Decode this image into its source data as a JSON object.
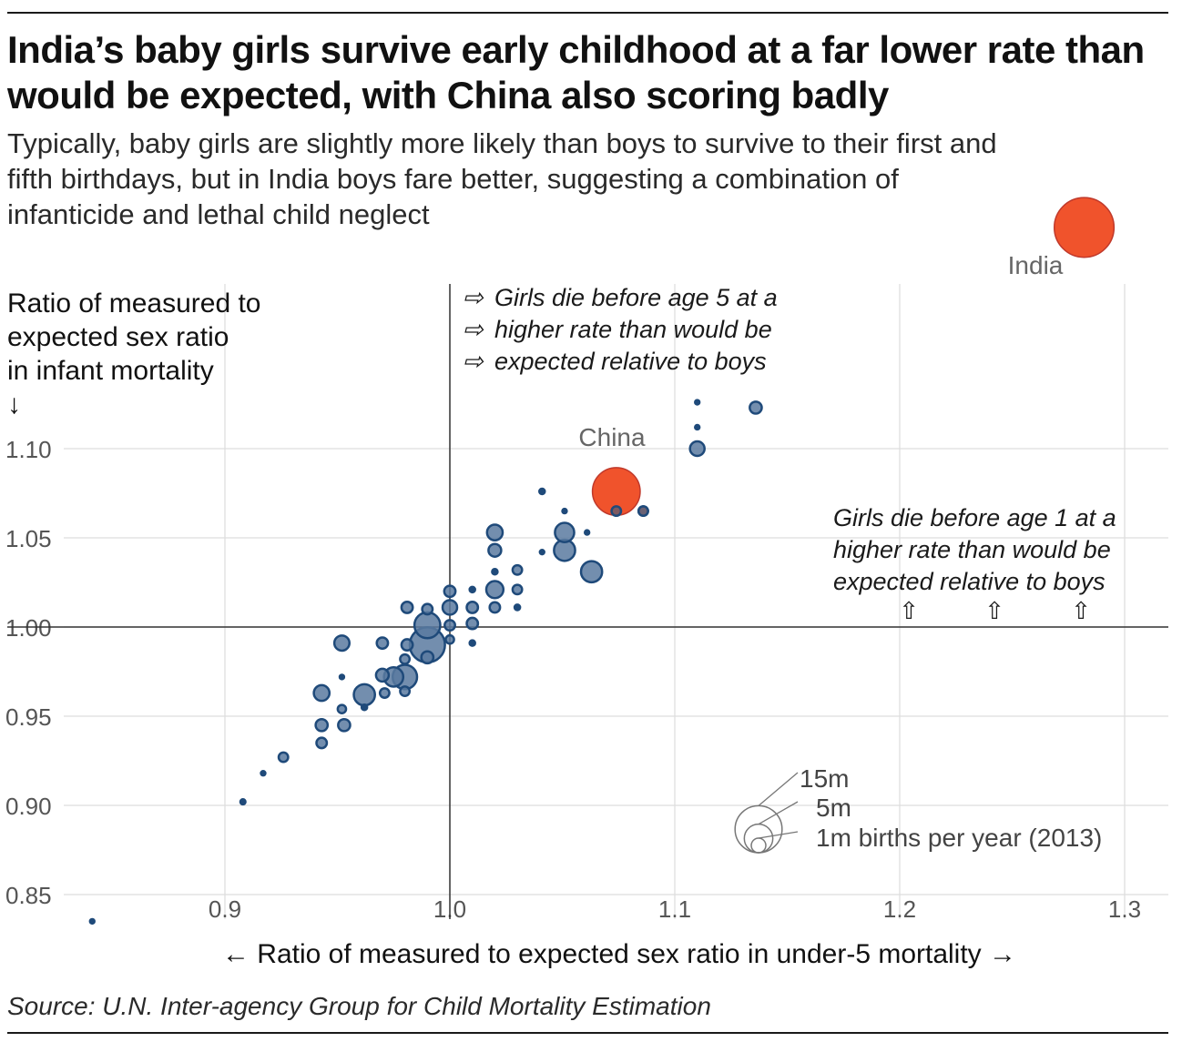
{
  "title": "India’s baby girls survive early childhood at a far lower rate than would be expected, with China also scoring badly",
  "subtitle": "Typically, baby girls are slightly more likely than boys to survive to their first and fifth birthdays, but in India boys fare better, suggesting a combination of infanticide and lethal child neglect",
  "source": "Source: U.N. Inter-agency Group for Child Mortality Estimation",
  "colors": {
    "bubble_fill": "#5a7aa0",
    "bubble_stroke": "#1f4a7a",
    "dark_bubble": "#1f4a7a",
    "highlight": "#f0532c",
    "highlight_stroke": "#c0392b",
    "grid": "#dddddd",
    "axis": "#333333",
    "label_gray": "#666666"
  },
  "chart_data": {
    "type": "scatter",
    "title": "India’s baby girls survive early childhood at a far lower rate than would be expected, with China also scoring badly",
    "xlabel": "← Ratio of measured to expected sex ratio in under-5 mortality →",
    "ylabel": "Ratio of measured to expected sex ratio in infant mortality",
    "ylabel_lines": [
      "Ratio of measured to",
      "expected sex ratio",
      "in infant mortality",
      "↓"
    ],
    "xlim": [
      0.8,
      1.32
    ],
    "ylim": [
      0.84,
      1.2
    ],
    "x_ticks": [
      0.9,
      1.0,
      1.1,
      1.2,
      1.3
    ],
    "x_tick_labels": [
      "0.9",
      "1.0",
      "1.1",
      "1.2",
      "1.3"
    ],
    "y_ticks": [
      1.1,
      1.05,
      1.0,
      0.95,
      0.9,
      0.85
    ],
    "y_tick_labels": [
      "1.10",
      "1.05",
      "1.00",
      "0.95",
      "0.90",
      "0.85"
    ],
    "grid": true,
    "reference_lines": {
      "x": 1.0,
      "y": 1.0
    },
    "size_variable": "births per year (2013)",
    "points": [
      {
        "x": 0.841,
        "y": 0.835,
        "births_m": 0.05
      },
      {
        "x": 0.908,
        "y": 0.902,
        "births_m": 0.08
      },
      {
        "x": 0.917,
        "y": 0.918,
        "births_m": 0.05
      },
      {
        "x": 0.926,
        "y": 0.927,
        "births_m": 0.3
      },
      {
        "x": 0.943,
        "y": 0.935,
        "births_m": 0.4
      },
      {
        "x": 0.943,
        "y": 0.945,
        "births_m": 0.6
      },
      {
        "x": 0.953,
        "y": 0.945,
        "births_m": 0.6
      },
      {
        "x": 0.943,
        "y": 0.963,
        "births_m": 1.2
      },
      {
        "x": 0.952,
        "y": 0.954,
        "births_m": 0.2
      },
      {
        "x": 0.952,
        "y": 0.972,
        "births_m": 0.05
      },
      {
        "x": 0.952,
        "y": 0.991,
        "births_m": 1.1
      },
      {
        "x": 0.962,
        "y": 0.962,
        "births_m": 2.5
      },
      {
        "x": 0.962,
        "y": 0.955,
        "births_m": 0.1
      },
      {
        "x": 0.97,
        "y": 0.991,
        "births_m": 0.5
      },
      {
        "x": 0.97,
        "y": 0.973,
        "births_m": 0.7
      },
      {
        "x": 0.975,
        "y": 0.972,
        "births_m": 2.0
      },
      {
        "x": 0.971,
        "y": 0.963,
        "births_m": 0.3
      },
      {
        "x": 0.98,
        "y": 0.972,
        "births_m": 3.5
      },
      {
        "x": 0.98,
        "y": 0.982,
        "births_m": 0.3
      },
      {
        "x": 0.98,
        "y": 0.964,
        "births_m": 0.3
      },
      {
        "x": 0.981,
        "y": 1.011,
        "births_m": 0.5
      },
      {
        "x": 0.981,
        "y": 0.99,
        "births_m": 0.5
      },
      {
        "x": 0.99,
        "y": 0.99,
        "births_m": 8.0
      },
      {
        "x": 0.99,
        "y": 1.001,
        "births_m": 4.0
      },
      {
        "x": 0.99,
        "y": 0.983,
        "births_m": 0.6
      },
      {
        "x": 0.99,
        "y": 1.01,
        "births_m": 0.4
      },
      {
        "x": 1.0,
        "y": 1.011,
        "births_m": 1.0
      },
      {
        "x": 1.0,
        "y": 1.02,
        "births_m": 0.5
      },
      {
        "x": 1.0,
        "y": 1.001,
        "births_m": 0.4
      },
      {
        "x": 1.0,
        "y": 0.993,
        "births_m": 0.2
      },
      {
        "x": 1.01,
        "y": 1.011,
        "births_m": 0.5
      },
      {
        "x": 1.01,
        "y": 1.002,
        "births_m": 0.5
      },
      {
        "x": 1.01,
        "y": 1.021,
        "births_m": 0.1
      },
      {
        "x": 1.01,
        "y": 0.991,
        "births_m": 0.1
      },
      {
        "x": 1.02,
        "y": 1.053,
        "births_m": 1.2
      },
      {
        "x": 1.02,
        "y": 1.043,
        "births_m": 0.7
      },
      {
        "x": 1.02,
        "y": 1.021,
        "births_m": 1.5
      },
      {
        "x": 1.02,
        "y": 1.011,
        "births_m": 0.4
      },
      {
        "x": 1.02,
        "y": 1.031,
        "births_m": 0.1
      },
      {
        "x": 1.03,
        "y": 1.032,
        "births_m": 0.3
      },
      {
        "x": 1.03,
        "y": 1.021,
        "births_m": 0.3
      },
      {
        "x": 1.03,
        "y": 1.011,
        "births_m": 0.1
      },
      {
        "x": 1.041,
        "y": 1.076,
        "births_m": 0.1
      },
      {
        "x": 1.041,
        "y": 1.042,
        "births_m": 0.05
      },
      {
        "x": 1.051,
        "y": 1.053,
        "births_m": 2.0
      },
      {
        "x": 1.051,
        "y": 1.043,
        "births_m": 2.5
      },
      {
        "x": 1.051,
        "y": 1.065,
        "births_m": 0.05
      },
      {
        "x": 1.061,
        "y": 1.053,
        "births_m": 0.05
      },
      {
        "x": 1.063,
        "y": 1.031,
        "births_m": 2.5
      },
      {
        "x": 1.074,
        "y": 1.065,
        "births_m": 0.3
      },
      {
        "x": 1.086,
        "y": 1.065,
        "births_m": 0.3
      },
      {
        "x": 1.11,
        "y": 1.1,
        "births_m": 1.0
      },
      {
        "x": 1.11,
        "y": 1.112,
        "births_m": 0.05
      },
      {
        "x": 1.11,
        "y": 1.126,
        "births_m": 0.05
      },
      {
        "x": 1.136,
        "y": 1.123,
        "births_m": 0.6
      }
    ],
    "highlights": [
      {
        "name": "China",
        "x": 1.074,
        "y": 1.076,
        "births_m": 15.5
      },
      {
        "name": "India",
        "x": 1.282,
        "y": 1.224,
        "births_m": 25.0
      }
    ],
    "annotations": {
      "top": [
        "Girls die before age 5 at a",
        "higher rate than would be",
        "expected relative to boys"
      ],
      "right": [
        "Girls die before age 1 at a",
        "higher rate than would be",
        "expected relative to boys"
      ]
    },
    "legend": {
      "entries": [
        {
          "label": "15m",
          "births_m": 15
        },
        {
          "label": "5m",
          "births_m": 5
        },
        {
          "label": "1m births per year (2013)",
          "births_m": 1
        }
      ],
      "placement": "bottom-right"
    }
  }
}
